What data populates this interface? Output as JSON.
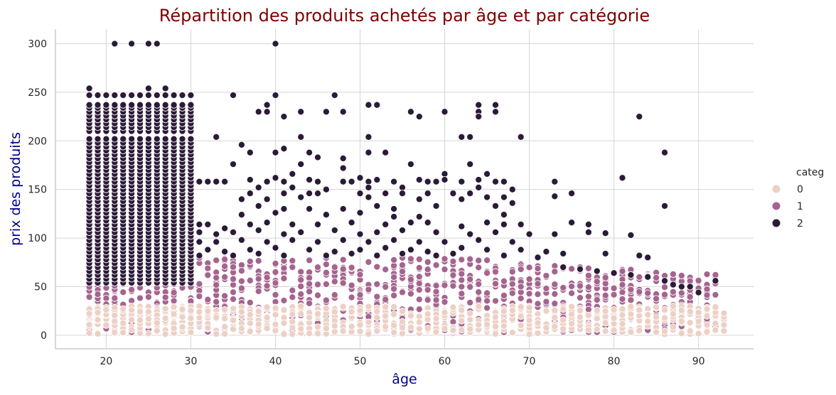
{
  "chart_data": {
    "type": "scatter",
    "title": "Répartition des produits achetés par âge et par catégorie",
    "xlabel": "âge",
    "ylabel": "prix des produits",
    "xlim": [
      14,
      96.5
    ],
    "ylim": [
      -14,
      315
    ],
    "xticks": [
      20,
      30,
      40,
      50,
      60,
      70,
      80,
      90
    ],
    "yticks": [
      0,
      50,
      100,
      150,
      200,
      250,
      300
    ],
    "grid": true,
    "legend": {
      "title": "categ",
      "placement": "right",
      "entries": [
        {
          "label": "0",
          "color": "#ecd0c6"
        },
        {
          "label": "1",
          "color": "#a5648f"
        },
        {
          "label": "2",
          "color": "#2b1a38"
        }
      ]
    },
    "series": [
      {
        "name": "0",
        "color": "#ecd0c6",
        "x_range": [
          18,
          93
        ],
        "y_min": 1,
        "y_max_at_x": [
          [
            18,
            30
          ],
          [
            30,
            30
          ],
          [
            50,
            30
          ],
          [
            70,
            30
          ],
          [
            80,
            30
          ],
          [
            93,
            30
          ]
        ]
      },
      {
        "name": "1",
        "color": "#a5648f",
        "x_range": [
          18,
          92
        ],
        "y_min": 3,
        "y_max_at_x": [
          [
            18,
            70
          ],
          [
            30,
            80
          ],
          [
            50,
            80
          ],
          [
            60,
            80
          ],
          [
            70,
            75
          ],
          [
            80,
            70
          ],
          [
            92,
            63
          ]
        ]
      },
      {
        "name": "2",
        "color": "#2b1a38",
        "dense_points_x_range": [
          18,
          30
        ],
        "dense_points_y_range": [
          50,
          247
        ],
        "dense_y_values": [
          54,
          58,
          62,
          66,
          70,
          74,
          78,
          82,
          86,
          90,
          94,
          98,
          102,
          106,
          110,
          114,
          118,
          122,
          126,
          130,
          134,
          138,
          142,
          146,
          150,
          154,
          158,
          162,
          166,
          170,
          174,
          178,
          182,
          186,
          190,
          194,
          198,
          202,
          210,
          214,
          218,
          222,
          226,
          230,
          234,
          237,
          247
        ],
        "sparse_points": [
          {
            "x": 18,
            "y": 254
          },
          {
            "x": 25,
            "y": 254
          },
          {
            "x": 27,
            "y": 254
          },
          {
            "x": 21,
            "y": 300
          },
          {
            "x": 23,
            "y": 300
          },
          {
            "x": 25,
            "y": 300
          },
          {
            "x": 26,
            "y": 300
          },
          {
            "x": 40,
            "y": 300
          },
          {
            "x": 35,
            "y": 247
          },
          {
            "x": 40,
            "y": 247
          },
          {
            "x": 47,
            "y": 247
          },
          {
            "x": 39,
            "y": 237
          },
          {
            "x": 51,
            "y": 237
          },
          {
            "x": 52,
            "y": 237
          },
          {
            "x": 64,
            "y": 237
          },
          {
            "x": 66,
            "y": 237
          },
          {
            "x": 38,
            "y": 230
          },
          {
            "x": 39,
            "y": 230
          },
          {
            "x": 43,
            "y": 230
          },
          {
            "x": 46,
            "y": 230
          },
          {
            "x": 48,
            "y": 230
          },
          {
            "x": 56,
            "y": 230
          },
          {
            "x": 60,
            "y": 230
          },
          {
            "x": 64,
            "y": 230
          },
          {
            "x": 66,
            "y": 230
          },
          {
            "x": 41,
            "y": 225
          },
          {
            "x": 57,
            "y": 225
          },
          {
            "x": 64,
            "y": 225
          },
          {
            "x": 83,
            "y": 225
          },
          {
            "x": 33,
            "y": 204
          },
          {
            "x": 43,
            "y": 204
          },
          {
            "x": 51,
            "y": 204
          },
          {
            "x": 62,
            "y": 204
          },
          {
            "x": 63,
            "y": 204
          },
          {
            "x": 69,
            "y": 204
          },
          {
            "x": 36,
            "y": 196
          },
          {
            "x": 41,
            "y": 192
          },
          {
            "x": 37,
            "y": 188
          },
          {
            "x": 40,
            "y": 188
          },
          {
            "x": 44,
            "y": 188
          },
          {
            "x": 51,
            "y": 188
          },
          {
            "x": 53,
            "y": 188
          },
          {
            "x": 86,
            "y": 188
          },
          {
            "x": 45,
            "y": 183
          },
          {
            "x": 48,
            "y": 182
          },
          {
            "x": 35,
            "y": 176
          },
          {
            "x": 43,
            "y": 176
          },
          {
            "x": 56,
            "y": 176
          },
          {
            "x": 63,
            "y": 176
          },
          {
            "x": 48,
            "y": 172
          },
          {
            "x": 42,
            "y": 166
          },
          {
            "x": 60,
            "y": 166
          },
          {
            "x": 65,
            "y": 166
          },
          {
            "x": 40,
            "y": 162
          },
          {
            "x": 81,
            "y": 162
          },
          {
            "x": 37,
            "y": 160
          },
          {
            "x": 44,
            "y": 160
          },
          {
            "x": 50,
            "y": 162
          },
          {
            "x": 52,
            "y": 160
          },
          {
            "x": 57,
            "y": 160
          },
          {
            "x": 60,
            "y": 160
          },
          {
            "x": 64,
            "y": 160
          },
          {
            "x": 31,
            "y": 158
          },
          {
            "x": 32,
            "y": 158
          },
          {
            "x": 33,
            "y": 158
          },
          {
            "x": 34,
            "y": 158
          },
          {
            "x": 39,
            "y": 158
          },
          {
            "x": 41,
            "y": 158
          },
          {
            "x": 45,
            "y": 158
          },
          {
            "x": 48,
            "y": 158
          },
          {
            "x": 49,
            "y": 158
          },
          {
            "x": 51,
            "y": 158
          },
          {
            "x": 54,
            "y": 158
          },
          {
            "x": 58,
            "y": 158
          },
          {
            "x": 59,
            "y": 158
          },
          {
            "x": 62,
            "y": 158
          },
          {
            "x": 66,
            "y": 158
          },
          {
            "x": 67,
            "y": 158
          },
          {
            "x": 73,
            "y": 158
          },
          {
            "x": 38,
            "y": 152
          },
          {
            "x": 42,
            "y": 152
          },
          {
            "x": 46,
            "y": 150
          },
          {
            "x": 51,
            "y": 152
          },
          {
            "x": 55,
            "y": 152
          },
          {
            "x": 64,
            "y": 152
          },
          {
            "x": 68,
            "y": 150
          },
          {
            "x": 37,
            "y": 146
          },
          {
            "x": 41,
            "y": 146
          },
          {
            "x": 44,
            "y": 146
          },
          {
            "x": 45,
            "y": 146
          },
          {
            "x": 50,
            "y": 146
          },
          {
            "x": 53,
            "y": 146
          },
          {
            "x": 55,
            "y": 146
          },
          {
            "x": 58,
            "y": 146
          },
          {
            "x": 61,
            "y": 146
          },
          {
            "x": 63,
            "y": 146
          },
          {
            "x": 65,
            "y": 142
          },
          {
            "x": 67,
            "y": 142
          },
          {
            "x": 73,
            "y": 143
          },
          {
            "x": 75,
            "y": 146
          },
          {
            "x": 36,
            "y": 140
          },
          {
            "x": 39,
            "y": 140
          },
          {
            "x": 43,
            "y": 142
          },
          {
            "x": 51,
            "y": 142
          },
          {
            "x": 57,
            "y": 140
          },
          {
            "x": 62,
            "y": 140
          },
          {
            "x": 38,
            "y": 133
          },
          {
            "x": 41,
            "y": 130
          },
          {
            "x": 44,
            "y": 130
          },
          {
            "x": 48,
            "y": 130
          },
          {
            "x": 52,
            "y": 133
          },
          {
            "x": 54,
            "y": 130
          },
          {
            "x": 59,
            "y": 133
          },
          {
            "x": 66,
            "y": 133
          },
          {
            "x": 68,
            "y": 136
          },
          {
            "x": 86,
            "y": 133
          },
          {
            "x": 36,
            "y": 124
          },
          {
            "x": 40,
            "y": 126
          },
          {
            "x": 46,
            "y": 124
          },
          {
            "x": 50,
            "y": 126
          },
          {
            "x": 54,
            "y": 122
          },
          {
            "x": 57,
            "y": 122
          },
          {
            "x": 67,
            "y": 124
          },
          {
            "x": 31,
            "y": 114
          },
          {
            "x": 32,
            "y": 114
          },
          {
            "x": 34,
            "y": 110
          },
          {
            "x": 37,
            "y": 114
          },
          {
            "x": 39,
            "y": 116
          },
          {
            "x": 42,
            "y": 114
          },
          {
            "x": 45,
            "y": 114
          },
          {
            "x": 49,
            "y": 116
          },
          {
            "x": 53,
            "y": 114
          },
          {
            "x": 56,
            "y": 116
          },
          {
            "x": 58,
            "y": 116
          },
          {
            "x": 62,
            "y": 112
          },
          {
            "x": 65,
            "y": 116
          },
          {
            "x": 67,
            "y": 114
          },
          {
            "x": 69,
            "y": 114
          },
          {
            "x": 75,
            "y": 116
          },
          {
            "x": 77,
            "y": 114
          },
          {
            "x": 31,
            "y": 106
          },
          {
            "x": 33,
            "y": 104
          },
          {
            "x": 35,
            "y": 106
          },
          {
            "x": 38,
            "y": 108
          },
          {
            "x": 41,
            "y": 104
          },
          {
            "x": 43,
            "y": 106
          },
          {
            "x": 47,
            "y": 108
          },
          {
            "x": 50,
            "y": 104
          },
          {
            "x": 52,
            "y": 106
          },
          {
            "x": 55,
            "y": 108
          },
          {
            "x": 59,
            "y": 106
          },
          {
            "x": 63,
            "y": 104
          },
          {
            "x": 66,
            "y": 106
          },
          {
            "x": 70,
            "y": 104
          },
          {
            "x": 73,
            "y": 104
          },
          {
            "x": 77,
            "y": 106
          },
          {
            "x": 79,
            "y": 105
          },
          {
            "x": 82,
            "y": 103
          },
          {
            "x": 31,
            "y": 96
          },
          {
            "x": 33,
            "y": 96
          },
          {
            "x": 36,
            "y": 98
          },
          {
            "x": 39,
            "y": 96
          },
          {
            "x": 42,
            "y": 98
          },
          {
            "x": 45,
            "y": 96
          },
          {
            "x": 48,
            "y": 98
          },
          {
            "x": 51,
            "y": 96
          },
          {
            "x": 54,
            "y": 98
          },
          {
            "x": 57,
            "y": 96
          },
          {
            "x": 60,
            "y": 96
          },
          {
            "x": 64,
            "y": 98
          },
          {
            "x": 68,
            "y": 96
          },
          {
            "x": 32,
            "y": 88
          },
          {
            "x": 34,
            "y": 86
          },
          {
            "x": 37,
            "y": 88
          },
          {
            "x": 40,
            "y": 90
          },
          {
            "x": 44,
            "y": 88
          },
          {
            "x": 47,
            "y": 86
          },
          {
            "x": 50,
            "y": 88
          },
          {
            "x": 53,
            "y": 90
          },
          {
            "x": 56,
            "y": 88
          },
          {
            "x": 58,
            "y": 86
          },
          {
            "x": 62,
            "y": 90
          },
          {
            "x": 65,
            "y": 88
          },
          {
            "x": 69,
            "y": 88
          },
          {
            "x": 72,
            "y": 86
          },
          {
            "x": 74,
            "y": 84
          },
          {
            "x": 79,
            "y": 84
          },
          {
            "x": 83,
            "y": 82
          },
          {
            "x": 84,
            "y": 80
          },
          {
            "x": 31,
            "y": 82
          },
          {
            "x": 35,
            "y": 82
          },
          {
            "x": 38,
            "y": 84
          },
          {
            "x": 41,
            "y": 82
          },
          {
            "x": 46,
            "y": 82
          },
          {
            "x": 49,
            "y": 84
          },
          {
            "x": 52,
            "y": 82
          },
          {
            "x": 55,
            "y": 84
          },
          {
            "x": 59,
            "y": 82
          },
          {
            "x": 61,
            "y": 84
          },
          {
            "x": 67,
            "y": 82
          },
          {
            "x": 71,
            "y": 80
          },
          {
            "x": 74,
            "y": 70
          },
          {
            "x": 76,
            "y": 68
          },
          {
            "x": 78,
            "y": 66
          },
          {
            "x": 80,
            "y": 64
          },
          {
            "x": 82,
            "y": 62
          },
          {
            "x": 84,
            "y": 60
          },
          {
            "x": 86,
            "y": 56
          },
          {
            "x": 87,
            "y": 52
          },
          {
            "x": 88,
            "y": 50
          },
          {
            "x": 89,
            "y": 50
          },
          {
            "x": 90,
            "y": 44
          },
          {
            "x": 92,
            "y": 56
          }
        ]
      }
    ]
  }
}
